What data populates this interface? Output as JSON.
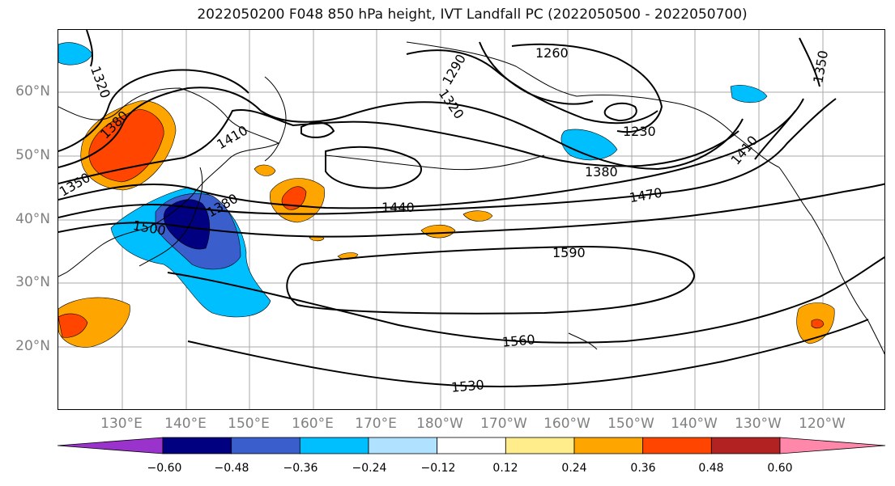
{
  "title": "2022050200 F048 850 hPa height, IVT Landfall PC (2022050500 - 2022050700)",
  "lat_labels": [
    "60°N",
    "50°N",
    "40°N",
    "30°N",
    "20°N"
  ],
  "lon_labels": [
    "130°E",
    "140°E",
    "150°E",
    "160°E",
    "170°E",
    "180°W",
    "170°W",
    "160°W",
    "150°W",
    "140°W",
    "130°W",
    "120°W"
  ],
  "contour_labels": {
    "c1230": "1230",
    "c1260": "1260",
    "c1290": "1290",
    "c1320a": "1320",
    "c1320b": "1320",
    "c1350a": "1350",
    "c1350b": "1350",
    "c1380a": "1380",
    "c1380b": "1380",
    "c1380c": "1380",
    "c1410a": "1410",
    "c1410b": "1410",
    "c1440": "1440",
    "c1470": "1470",
    "c1500": "1500",
    "c1530": "1530",
    "c1560": "1560",
    "c1590": "1590"
  },
  "colorbar": {
    "ticks": [
      "−0.60",
      "−0.48",
      "−0.36",
      "−0.24",
      "−0.12",
      "0.12",
      "0.24",
      "0.36",
      "0.48",
      "0.60"
    ],
    "colors": [
      "#9933cc",
      "#000080",
      "#3a5fcd",
      "#00bfff",
      "#b0e2ff",
      "#ffffff",
      "#ffec8b",
      "#ffa500",
      "#ff4500",
      "#b22222",
      "#ff88aa"
    ]
  },
  "chart_data": {
    "type": "heatmap",
    "title": "2022050200 F048 850 hPa height, IVT Landfall PC (2022050500 - 2022050700)",
    "overlay": "850 hPa geopotential height contours (m)",
    "contour_levels": [
      1230,
      1260,
      1290,
      1320,
      1350,
      1380,
      1410,
      1440,
      1470,
      1500,
      1530,
      1560,
      1590
    ],
    "lat_range": [
      10,
      70
    ],
    "lon_range": [
      120,
      250
    ],
    "color_levels": [
      -0.6,
      -0.48,
      -0.36,
      -0.24,
      -0.12,
      0.12,
      0.24,
      0.36,
      0.48,
      0.6
    ],
    "grid": true
  }
}
